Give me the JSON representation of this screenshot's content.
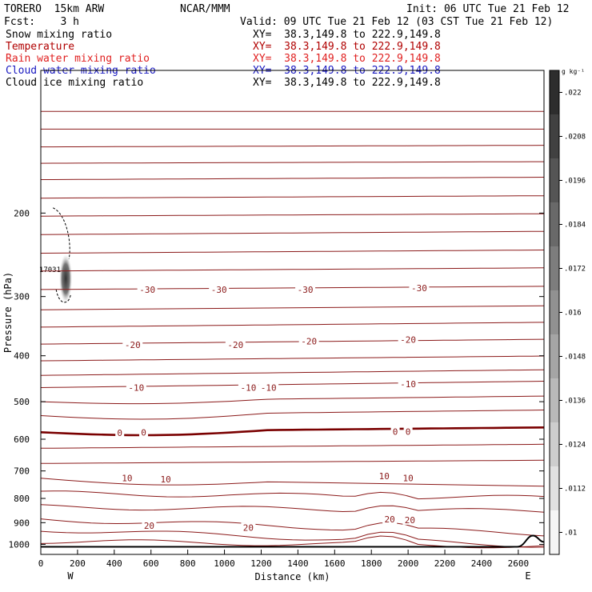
{
  "header": {
    "model": "TORERO  15km ARW",
    "org": "NCAR/MMM",
    "init": "Init: 06 UTC Tue 21 Feb 12",
    "fcst": "Fcst:    3 h",
    "valid": "Valid: 09 UTC Tue 21 Feb 12 (03 CST Tue 21 Feb 12)"
  },
  "fields": [
    {
      "label": "Snow mixing ratio",
      "xy": "XY=  38.3,149.8 to 222.9,149.8",
      "color": "#000000"
    },
    {
      "label": "Temperature",
      "xy": "XY=  38.3,149.8 to 222.9,149.8",
      "color": "#c00000"
    },
    {
      "label": "Rain water mixing ratio",
      "xy": "XY=  38.3,149.8 to 222.9,149.8",
      "color": "#e02020"
    },
    {
      "label": "Cloud water mixing ratio",
      "xy": "XY=  38.3,149.8 to 222.9,149.8",
      "color": "#1818c0"
    },
    {
      "label": "Cloud ice mixing ratio",
      "xy": "XY=  38.3,149.8 to 222.9,149.8",
      "color": "#000000"
    }
  ],
  "colorbar": {
    "unit_label": "g kg⁻¹",
    "ticks": [
      ".01",
      ".0112",
      ".0124",
      ".0136",
      ".0148",
      ".016",
      ".0172",
      ".0184",
      ".0196",
      ".0208",
      ".022"
    ]
  },
  "chart_data": {
    "type": "contour",
    "xlabel": "Distance (km)",
    "ylabel": "Pressure (hPa)",
    "xlim": [
      0,
      2740
    ],
    "ylim": [
      1050,
      100
    ],
    "x_ticks": [
      0,
      200,
      400,
      600,
      800,
      1000,
      1200,
      1400,
      1600,
      1800,
      2000,
      2200,
      2400,
      2600
    ],
    "y_ticks": [
      200,
      300,
      400,
      500,
      600,
      700,
      800,
      900,
      1000
    ],
    "y_scale": "log",
    "left_end_label": "W",
    "right_end_label": "E",
    "contour_interval_C": 5,
    "temperature_labels": [
      {
        "x": 580,
        "p": 290,
        "text": "-30"
      },
      {
        "x": 970,
        "p": 290,
        "text": "-30"
      },
      {
        "x": 1440,
        "p": 290,
        "text": "-30"
      },
      {
        "x": 2060,
        "p": 288,
        "text": "-30"
      },
      {
        "x": 500,
        "p": 379,
        "text": "-20"
      },
      {
        "x": 1060,
        "p": 379,
        "text": "-20"
      },
      {
        "x": 1460,
        "p": 373,
        "text": "-20"
      },
      {
        "x": 2000,
        "p": 370,
        "text": "-20"
      },
      {
        "x": 520,
        "p": 467,
        "text": "-10"
      },
      {
        "x": 1130,
        "p": 467,
        "text": "-10"
      },
      {
        "x": 1240,
        "p": 467,
        "text": "-10"
      },
      {
        "x": 2000,
        "p": 459,
        "text": "-10"
      },
      {
        "x": 430,
        "p": 582,
        "text": "0"
      },
      {
        "x": 560,
        "p": 580,
        "text": "0"
      },
      {
        "x": 1930,
        "p": 578,
        "text": "0"
      },
      {
        "x": 2000,
        "p": 578,
        "text": "0"
      },
      {
        "x": 470,
        "p": 725,
        "text": "10"
      },
      {
        "x": 680,
        "p": 729,
        "text": "10"
      },
      {
        "x": 1870,
        "p": 717,
        "text": "10"
      },
      {
        "x": 2000,
        "p": 725,
        "text": "10"
      },
      {
        "x": 590,
        "p": 913,
        "text": "20"
      },
      {
        "x": 1130,
        "p": 922,
        "text": "20"
      },
      {
        "x": 1900,
        "p": 885,
        "text": "20"
      },
      {
        "x": 2010,
        "p": 888,
        "text": "20"
      }
    ],
    "snow_label": {
      "x": 50,
      "p": 262,
      "text": "17031"
    },
    "cloud_ice_max": {
      "x": 40,
      "p_top": 248,
      "p_bottom": 305
    },
    "surface_level_hPa": 1012
  }
}
